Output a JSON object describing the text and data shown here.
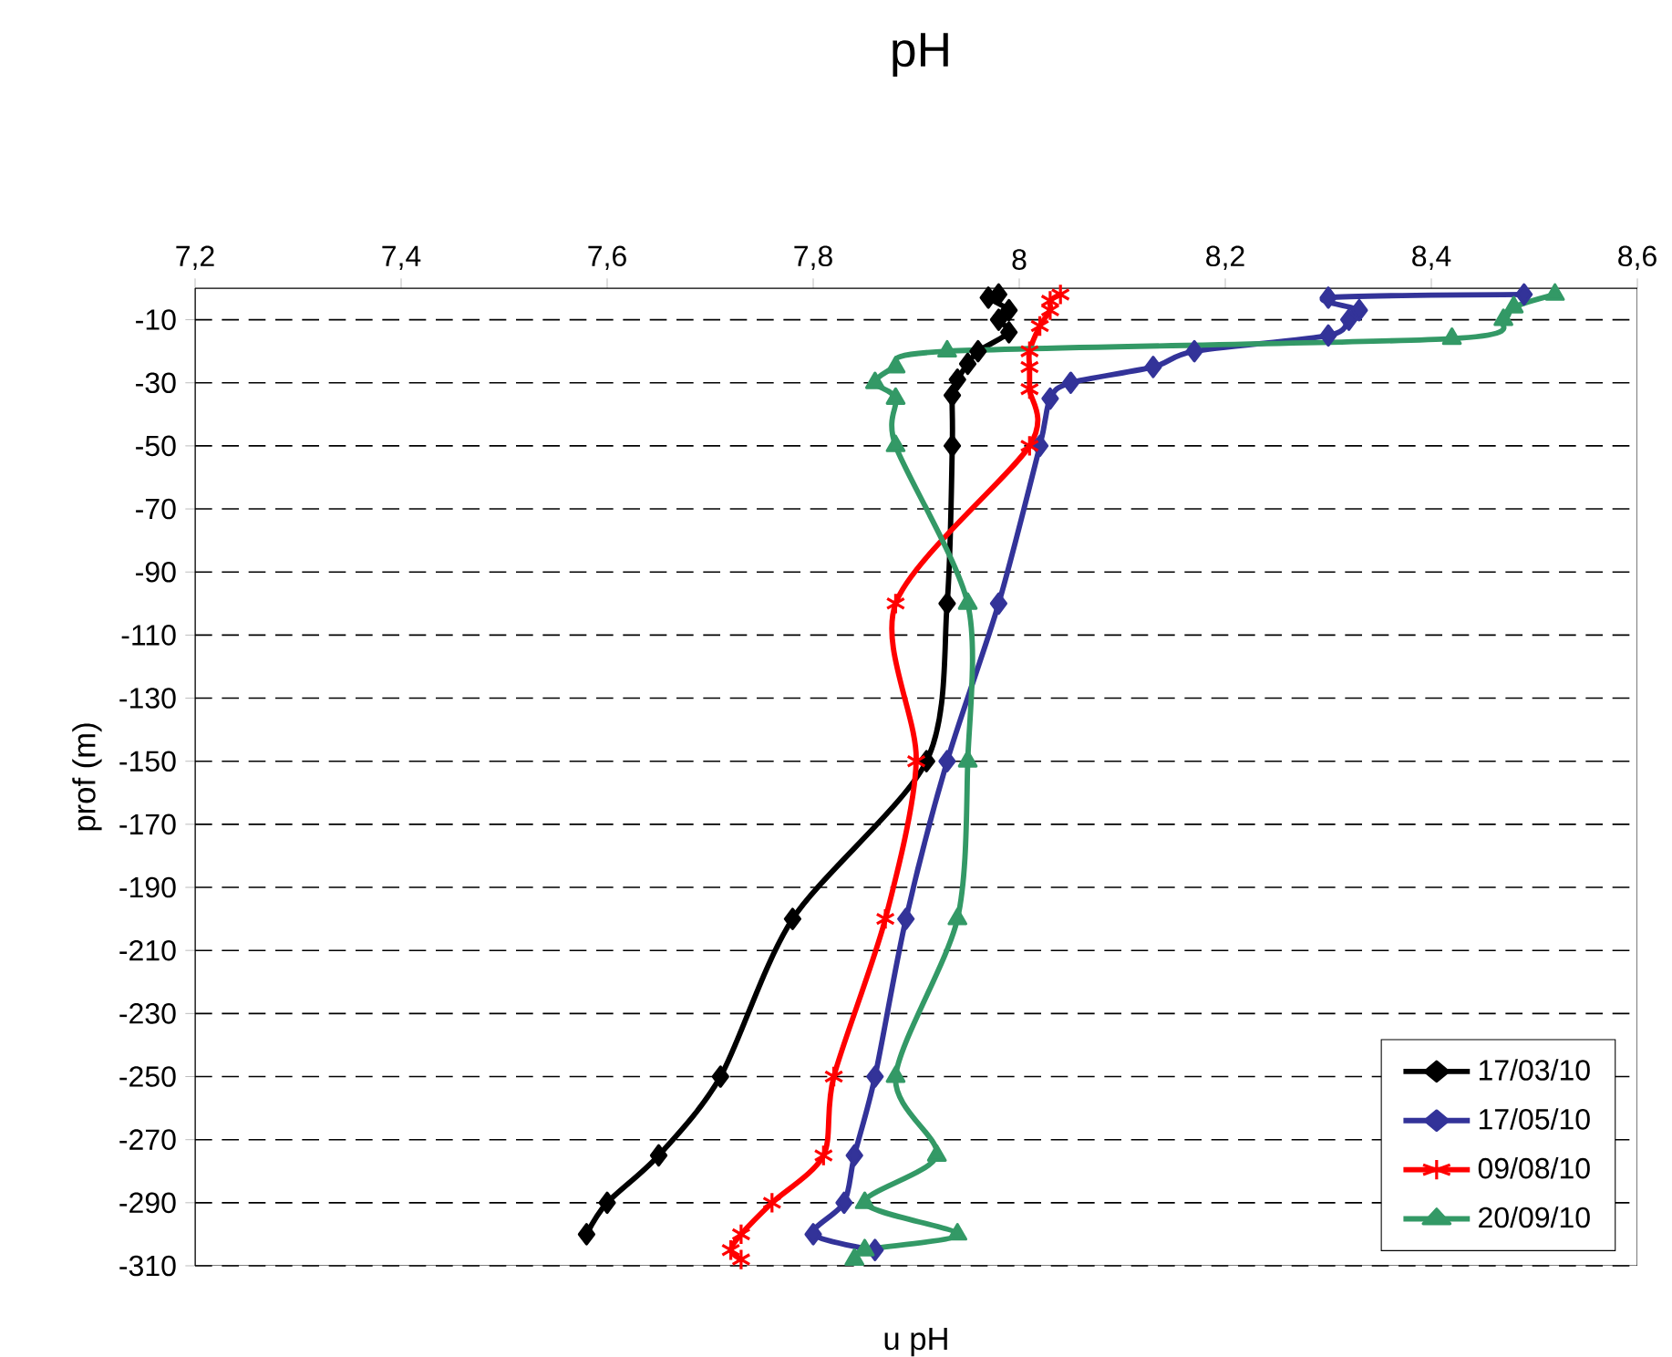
{
  "chart_data": {
    "type": "line",
    "title": "pH",
    "xlabel": "u pH",
    "ylabel": "prof (m)",
    "xlim": [
      7.2,
      8.6
    ],
    "xticks": [
      {
        "value": 7.2,
        "label": "7,2"
      },
      {
        "value": 7.4,
        "label": "7,4"
      },
      {
        "value": 7.6,
        "label": "7,6"
      },
      {
        "value": 7.8,
        "label": "7,8"
      },
      8,
      {
        "value": 8.2,
        "label": "8,2"
      },
      {
        "value": 8.4,
        "label": "8,4"
      },
      {
        "value": 8.6,
        "label": "8,6"
      }
    ],
    "ylim": [
      -310,
      0
    ],
    "yticks": [
      -10,
      -30,
      -50,
      -70,
      -90,
      -110,
      -130,
      -150,
      -170,
      -190,
      -210,
      -230,
      -250,
      -270,
      -290,
      -310
    ],
    "grid": "y",
    "legend": "bottom right",
    "series": [
      {
        "name": "17/03/10",
        "color": "#000000",
        "marker": "diamond",
        "x": [
          7.98,
          7.97,
          7.99,
          7.98,
          7.99,
          7.96,
          7.95,
          7.94,
          7.935,
          7.935,
          7.93,
          7.91,
          7.78,
          7.71,
          7.65,
          7.6,
          7.58
        ],
        "values": [
          -2,
          -3,
          -7,
          -10,
          -14,
          -20,
          -24,
          -29,
          -34,
          -50,
          -100,
          -150,
          -200,
          -250,
          -275,
          -290,
          -300
        ]
      },
      {
        "name": "17/05/10",
        "color": "#333399",
        "marker": "diamond",
        "x": [
          8.49,
          8.3,
          8.33,
          8.32,
          8.3,
          8.17,
          8.13,
          8.05,
          8.03,
          8.02,
          7.98,
          7.93,
          7.89,
          7.86,
          7.84,
          7.83,
          7.8,
          7.86
        ],
        "values": [
          -2,
          -3,
          -7,
          -10,
          -15,
          -20,
          -25,
          -30,
          -35,
          -50,
          -100,
          -150,
          -200,
          -250,
          -275,
          -290,
          -300,
          -305
        ]
      },
      {
        "name": "09/08/10",
        "color": "#ff0000",
        "marker": "cross",
        "x": [
          8.04,
          8.03,
          8.03,
          8.02,
          8.01,
          8.01,
          8.01,
          8.01,
          7.88,
          7.9,
          7.87,
          7.82,
          7.81,
          7.76,
          7.73,
          7.72,
          7.73
        ],
        "values": [
          -2,
          -4,
          -7,
          -12,
          -20,
          -25,
          -32,
          -50,
          -100,
          -150,
          -200,
          -250,
          -275,
          -290,
          -300,
          -305,
          -308
        ]
      },
      {
        "name": "20/09/10",
        "color": "#339966",
        "marker": "triangle",
        "x": [
          8.52,
          8.48,
          8.47,
          8.42,
          7.93,
          7.88,
          7.86,
          7.88,
          7.88,
          7.95,
          7.95,
          7.94,
          7.88,
          7.92,
          7.85,
          7.94,
          7.85,
          7.84
        ],
        "values": [
          -2,
          -6,
          -10,
          -16,
          -20,
          -25,
          -30,
          -35,
          -50,
          -100,
          -150,
          -200,
          -250,
          -275,
          -290,
          -300,
          -305,
          -308
        ]
      }
    ]
  }
}
